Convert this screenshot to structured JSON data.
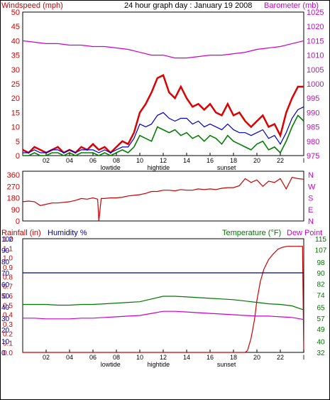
{
  "header": {
    "left_axis_label": "Windspeed (mph)",
    "title": "24 hour graph day : January 19 2008",
    "right_axis_label": "Barometer (mb)"
  },
  "colors": {
    "windspeed_gust": "#dd0000",
    "windspeed_avg": "#008000",
    "windspeed_line": "#0000cc",
    "barometer": "#cc00cc",
    "wind_direction": "#cc0000",
    "rainfall": "#cc0000",
    "humidity": "#000099",
    "temperature": "#007700",
    "dew_point": "#cc00cc",
    "axis_red": "#cc0000",
    "axis_magenta": "#cc00cc",
    "axis_blue": "#0000aa",
    "axis_green": "#007700"
  },
  "x_axis": {
    "tick_labels": [
      "02",
      "04",
      "06",
      "08",
      "10",
      "12",
      "14",
      "16",
      "18",
      "20",
      "22",
      "I"
    ],
    "tick_hours": [
      2,
      4,
      6,
      8,
      10,
      12,
      14,
      16,
      18,
      20,
      22,
      24
    ],
    "annotations": [
      {
        "text": "lowtide",
        "hour": 7.5
      },
      {
        "text": "hightide",
        "hour": 11.6
      },
      {
        "text": "sunset",
        "hour": 17.4
      }
    ]
  },
  "chart_data": [
    {
      "type": "line",
      "title": "24 hour graph day : January 19 2008",
      "ylabel": "Windspeed (mph)",
      "y2label": "Barometer (mb)",
      "x_unit": "hour",
      "xlim": [
        0,
        24
      ],
      "ylim": [
        0,
        50
      ],
      "y_ticks": [
        0,
        5,
        10,
        15,
        20,
        25,
        30,
        35,
        40,
        45,
        50
      ],
      "y2lim": [
        975,
        1025
      ],
      "y2_ticks": [
        975,
        980,
        985,
        990,
        995,
        1000,
        1005,
        1010,
        1015,
        1020,
        1025
      ],
      "grid": false,
      "series": [
        {
          "key": "gust",
          "axis": "left",
          "x": [
            0,
            0.5,
            1,
            1.5,
            2,
            2.5,
            3,
            3.5,
            4,
            4.5,
            5,
            5.5,
            6,
            6.5,
            7,
            7.5,
            8,
            8.5,
            9,
            9.5,
            10,
            10.5,
            11,
            11.5,
            12,
            12.5,
            13,
            13.5,
            14,
            14.5,
            15,
            15.5,
            16,
            16.5,
            17,
            17.5,
            18,
            18.5,
            19,
            19.5,
            20,
            20.5,
            21,
            21.5,
            22,
            22.5,
            23,
            23.5,
            24
          ],
          "values": [
            2,
            1,
            3,
            2,
            1,
            2,
            3,
            1,
            2,
            1,
            3,
            2,
            4,
            2,
            3,
            1,
            3,
            5,
            4,
            8,
            15,
            18,
            22,
            27,
            28,
            22,
            20,
            24,
            20,
            17,
            18,
            16,
            18,
            15,
            14,
            18,
            14,
            15,
            12,
            10,
            12,
            14,
            10,
            11,
            7,
            15,
            20,
            24,
            24
          ]
        },
        {
          "key": "avg",
          "axis": "left",
          "x": [
            0,
            0.5,
            1,
            1.5,
            2,
            2.5,
            3,
            3.5,
            4,
            4.5,
            5,
            5.5,
            6,
            6.5,
            7,
            7.5,
            8,
            8.5,
            9,
            9.5,
            10,
            10.5,
            11,
            11.5,
            12,
            12.5,
            13,
            13.5,
            14,
            14.5,
            15,
            15.5,
            16,
            16.5,
            17,
            17.5,
            18,
            18.5,
            19,
            19.5,
            20,
            20.5,
            21,
            21.5,
            22,
            22.5,
            23,
            23.5,
            24
          ],
          "values": [
            0,
            0,
            1,
            0,
            0,
            1,
            1,
            0,
            1,
            0,
            1,
            1,
            1,
            0,
            1,
            0,
            1,
            2,
            1,
            3,
            7,
            6,
            5,
            10,
            9,
            8,
            9,
            7,
            8,
            6,
            7,
            5,
            7,
            6,
            4,
            7,
            5,
            4,
            3,
            2,
            4,
            5,
            2,
            3,
            1,
            5,
            10,
            14,
            12
          ]
        },
        {
          "key": "line",
          "axis": "left",
          "x": [
            0,
            0.5,
            1,
            1.5,
            2,
            2.5,
            3,
            3.5,
            4,
            4.5,
            5,
            5.5,
            6,
            6.5,
            7,
            7.5,
            8,
            8.5,
            9,
            9.5,
            10,
            10.5,
            11,
            11.5,
            12,
            12.5,
            13,
            13.5,
            14,
            14.5,
            15,
            15.5,
            16,
            16.5,
            17,
            17.5,
            18,
            18.5,
            19,
            19.5,
            20,
            20.5,
            21,
            21.5,
            22,
            22.5,
            23,
            23.5,
            24
          ],
          "values": [
            1,
            1,
            2,
            1,
            1,
            2,
            2,
            1,
            2,
            1,
            2,
            2,
            2,
            1,
            2,
            1,
            2,
            3,
            3,
            6,
            11,
            10,
            11,
            14,
            15,
            13,
            12,
            13,
            13,
            11,
            12,
            10,
            11,
            10,
            9,
            11,
            9,
            8,
            8,
            7,
            8,
            9,
            6,
            7,
            4,
            8,
            13,
            16,
            17
          ]
        },
        {
          "key": "barometer",
          "axis": "right",
          "x": [
            0,
            1,
            2,
            3,
            4,
            5,
            6,
            7,
            8,
            9,
            10,
            11,
            12,
            13,
            14,
            15,
            16,
            17,
            18,
            19,
            20,
            21,
            22,
            23,
            24
          ],
          "values": [
            1015,
            1014.5,
            1014,
            1014,
            1013.5,
            1013.5,
            1013,
            1013,
            1012.5,
            1012,
            1011,
            1010,
            1010,
            1009,
            1009,
            1009.5,
            1010,
            1010,
            1010.5,
            1011,
            1012,
            1012.5,
            1013,
            1014,
            1015
          ]
        }
      ]
    },
    {
      "type": "line",
      "ylabel_right": "N W S E N",
      "x_unit": "hour",
      "xlim": [
        0,
        24
      ],
      "ylim": [
        0,
        360
      ],
      "y_ticks": [
        0,
        90,
        180,
        270,
        360
      ],
      "compass_labels": [
        "N",
        "W",
        "S",
        "E",
        "N"
      ],
      "series": [
        {
          "key": "direction",
          "x": [
            0,
            0.5,
            1,
            1.5,
            2,
            2.5,
            3,
            3.5,
            4,
            4.5,
            5,
            5.5,
            6,
            6.4,
            6.5,
            6.7,
            7,
            7.5,
            8,
            8.5,
            9,
            9.5,
            10,
            10.5,
            11,
            11.5,
            12,
            12.5,
            13,
            13.5,
            14,
            14.5,
            15,
            15.5,
            16,
            16.5,
            17,
            17.5,
            18,
            18.5,
            19,
            19.5,
            20,
            20.5,
            21,
            21.5,
            22,
            22.5,
            23,
            23.5,
            24
          ],
          "values": [
            150,
            155,
            150,
            120,
            130,
            140,
            140,
            145,
            150,
            160,
            175,
            170,
            180,
            170,
            0,
            175,
            175,
            180,
            180,
            185,
            195,
            200,
            205,
            215,
            230,
            230,
            240,
            240,
            235,
            245,
            240,
            240,
            250,
            245,
            250,
            245,
            255,
            260,
            260,
            275,
            330,
            300,
            320,
            270,
            310,
            300,
            330,
            250,
            340,
            330,
            325
          ]
        }
      ]
    },
    {
      "type": "line",
      "ylabel": "Rainfall (in)",
      "ylabel2": "Humidity %",
      "y2label": "Temperature (°F)",
      "y2label2": "Dew Point",
      "x_unit": "hour",
      "xlim": [
        0,
        24
      ],
      "rain_ylim": [
        0,
        1.2
      ],
      "rain_ticks": [
        "0.0",
        "0.1",
        "0.2",
        "0.3",
        "0.4",
        "0.5",
        "0.6",
        "0.7",
        "0.8",
        "0.9",
        "1.0",
        "1.1",
        "1.2"
      ],
      "humidity_ylim": [
        0,
        100
      ],
      "humidity_ticks": [
        "0",
        "10",
        "20",
        "30",
        "40",
        "50",
        "60",
        "70",
        "80",
        "90",
        "100"
      ],
      "temp_ylim": [
        32,
        115
      ],
      "temp_ticks": [
        "32",
        "40",
        "49",
        "57",
        "65",
        "74",
        "82",
        "90",
        "98",
        "107",
        "115"
      ],
      "series": [
        {
          "key": "rainfall",
          "axis": "rain",
          "x": [
            0,
            2,
            4,
            6,
            8,
            10,
            12,
            14,
            16,
            18,
            19.0,
            19.2,
            19.5,
            19.8,
            20,
            20.3,
            20.6,
            21,
            21.4,
            21.8,
            22.2,
            22.6,
            23,
            23.5,
            23.9,
            24
          ],
          "values": [
            0,
            0,
            0,
            0,
            0,
            0,
            0,
            0,
            0,
            0,
            0,
            0.02,
            0.15,
            0.35,
            0.55,
            0.75,
            0.88,
            0.98,
            1.04,
            1.09,
            1.11,
            1.12,
            1.12,
            1.12,
            1.12,
            0
          ]
        },
        {
          "key": "humidity",
          "axis": "humidity",
          "x": [
            0,
            24
          ],
          "values": [
            70,
            70
          ]
        },
        {
          "key": "temperature",
          "axis": "temp",
          "x": [
            0,
            1,
            2,
            3,
            4,
            5,
            6,
            7,
            8,
            9,
            10,
            11,
            12,
            13,
            14,
            15,
            16,
            17,
            18,
            19,
            20,
            21,
            22,
            23,
            24
          ],
          "values": [
            67,
            67,
            67,
            66.5,
            66.5,
            67,
            67,
            67.5,
            68,
            68.5,
            69,
            71,
            73,
            73,
            72.5,
            72,
            71.5,
            71,
            70.5,
            69.5,
            68.5,
            67.5,
            67,
            66,
            63
          ]
        },
        {
          "key": "dew_point",
          "axis": "temp",
          "x": [
            0,
            1,
            2,
            3,
            4,
            5,
            6,
            7,
            8,
            9,
            10,
            11,
            12,
            13,
            14,
            15,
            16,
            17,
            18,
            19,
            20,
            21,
            22,
            23,
            24
          ],
          "values": [
            57,
            57,
            56.5,
            56.5,
            56.5,
            57,
            57,
            57.5,
            58,
            58.5,
            59,
            60.5,
            62,
            62,
            61.5,
            61,
            60.5,
            60,
            59.5,
            59,
            58.5,
            58.5,
            58,
            57.5,
            56
          ]
        }
      ]
    }
  ]
}
